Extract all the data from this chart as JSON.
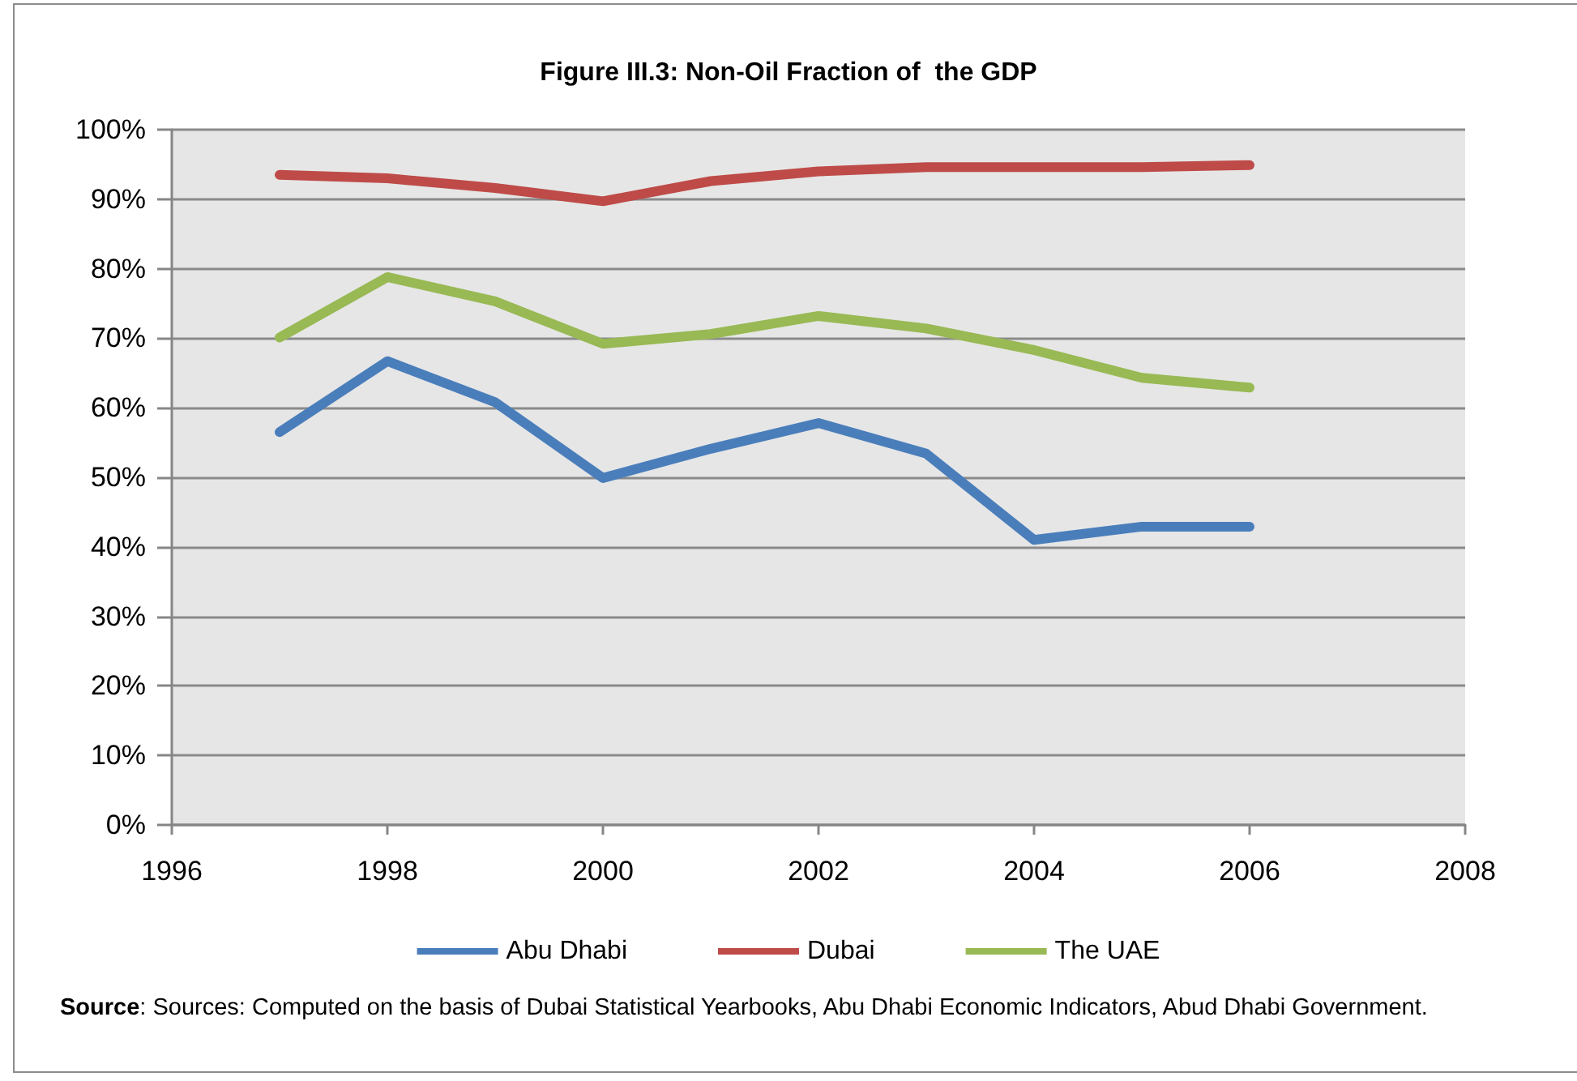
{
  "chart_data": {
    "type": "line",
    "title": "Figure III.3: Non-Oil Fraction of  the GDP",
    "x": [
      1997,
      1998,
      1999,
      2000,
      2001,
      2002,
      2003,
      2004,
      2005,
      2006
    ],
    "series": [
      {
        "name": "Abu Dhabi",
        "color": "#4a7ebb",
        "values": [
          56.5,
          66.7,
          60.8,
          49.9,
          54.1,
          57.8,
          53.4,
          41.0,
          42.9,
          42.9
        ]
      },
      {
        "name": "Dubai",
        "color": "#be4b48",
        "values": [
          93.5,
          93.0,
          91.6,
          89.7,
          92.6,
          94.0,
          94.6,
          94.6,
          94.6,
          94.9
        ]
      },
      {
        "name": "The UAE",
        "color": "#98b954",
        "values": [
          70.1,
          78.8,
          75.3,
          69.2,
          70.6,
          73.2,
          71.4,
          68.3,
          64.3,
          62.9
        ]
      }
    ],
    "xlim": [
      1996,
      2008
    ],
    "xticks": [
      1996,
      1998,
      2000,
      2002,
      2004,
      2006,
      2008
    ],
    "ylim": [
      0,
      100
    ],
    "yticks": [
      {
        "value": 0,
        "label": "0%"
      },
      {
        "value": 10,
        "label": "10%"
      },
      {
        "value": 20,
        "label": "20%"
      },
      {
        "value": 30,
        "label": "30%"
      },
      {
        "value": 40,
        "label": "40%"
      },
      {
        "value": 50,
        "label": "50%"
      },
      {
        "value": 60,
        "label": "60%"
      },
      {
        "value": 70,
        "label": "70%"
      },
      {
        "value": 80,
        "label": "80%"
      },
      {
        "value": 90,
        "label": "90%"
      },
      {
        "value": 100,
        "label": "100%"
      }
    ],
    "grid": "y",
    "legend": "bottom",
    "marker": "none",
    "line_style": "solid",
    "annotations": [
      "Source: Sources: Computed on the basis of Dubai Statistical Yearbooks,  Abu Dhabi Economic Indicators, Abud Dhabi Government."
    ]
  }
}
